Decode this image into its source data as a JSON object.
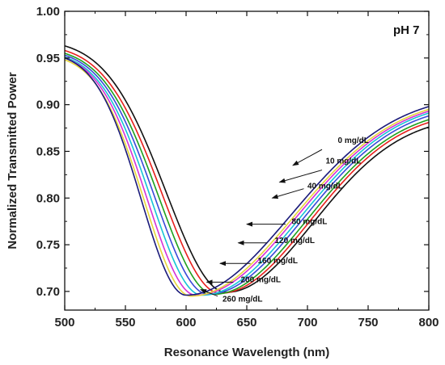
{
  "chart_data": {
    "type": "line",
    "title": "",
    "panel_label": "pH 7",
    "xlabel": "Resonance Wavelength (nm)",
    "ylabel": "Normalized Transmitted Power",
    "xlim": [
      500,
      800
    ],
    "ylim": [
      0.68,
      1.0
    ],
    "x_ticks": [
      500,
      550,
      600,
      650,
      700,
      750,
      800
    ],
    "y_ticks": [
      0.7,
      0.75,
      0.8,
      0.85,
      0.9,
      0.95,
      1.0
    ],
    "x_tick_labels": [
      "500",
      "550",
      "600",
      "650",
      "700",
      "750",
      "800"
    ],
    "y_tick_labels": [
      "0.70",
      "0.75",
      "0.80",
      "0.85",
      "0.90",
      "0.95",
      "1.00"
    ],
    "grid": false,
    "legend": "none",
    "series": [
      {
        "name": "0 mg/dL",
        "color": "#111111",
        "min_x": 633,
        "min_y": 0.699,
        "start_y": 0.963,
        "end_y": 0.876
      },
      {
        "name": "10 mg/dL",
        "color": "#e8201c",
        "min_x": 628,
        "min_y": 0.698,
        "start_y": 0.958,
        "end_y": 0.881
      },
      {
        "name": "40 mg/dL",
        "color": "#1ea01e",
        "min_x": 623,
        "min_y": 0.697,
        "start_y": 0.955,
        "end_y": 0.884
      },
      {
        "name": "80 mg/dL",
        "color": "#3a49d8",
        "min_x": 618,
        "min_y": 0.697,
        "start_y": 0.953,
        "end_y": 0.888
      },
      {
        "name": "120 mg/dL",
        "color": "#17c4d6",
        "min_x": 613,
        "min_y": 0.696,
        "start_y": 0.951,
        "end_y": 0.891
      },
      {
        "name": "160 mg/dL",
        "color": "#d632d6",
        "min_x": 608,
        "min_y": 0.696,
        "start_y": 0.95,
        "end_y": 0.893
      },
      {
        "name": "200 mg/dL",
        "color": "#e6d63a",
        "min_x": 604,
        "min_y": 0.695,
        "start_y": 0.948,
        "end_y": 0.895
      },
      {
        "name": "260 mg/dL",
        "color": "#1a1a7a",
        "min_x": 600,
        "min_y": 0.696,
        "start_y": 0.95,
        "end_y": 0.898
      }
    ],
    "annotations": [
      {
        "text": "0 mg/dL",
        "tx": 725,
        "ty": 0.859,
        "ax": 712,
        "ay": 0.852,
        "bx": 688,
        "by": 0.835
      },
      {
        "text": "10 mg/dL",
        "tx": 715,
        "ty": 0.837,
        "ax": 712,
        "ay": 0.83,
        "bx": 677,
        "by": 0.817
      },
      {
        "text": "40 mg/dL",
        "tx": 700,
        "ty": 0.81,
        "ax": 697,
        "ay": 0.81,
        "bx": 671,
        "by": 0.8
      },
      {
        "text": "80 mg/dL",
        "tx": 687,
        "ty": 0.772,
        "ax": 682,
        "ay": 0.772,
        "bx": 650,
        "by": 0.772
      },
      {
        "text": "120 mg/dL",
        "tx": 673,
        "ty": 0.752,
        "ax": 667,
        "ay": 0.752,
        "bx": 643,
        "by": 0.752
      },
      {
        "text": "160 mg/dL",
        "tx": 659,
        "ty": 0.73,
        "ax": 653,
        "ay": 0.73,
        "bx": 628,
        "by": 0.73
      },
      {
        "text": "200 mg/dL",
        "tx": 645,
        "ty": 0.71,
        "ax": 639,
        "ay": 0.71,
        "bx": 617,
        "by": 0.71
      },
      {
        "text": "260 mg/dL",
        "tx": 630,
        "ty": 0.689,
        "ax": 626,
        "ay": 0.695,
        "bx": 612,
        "by": 0.702
      }
    ]
  }
}
